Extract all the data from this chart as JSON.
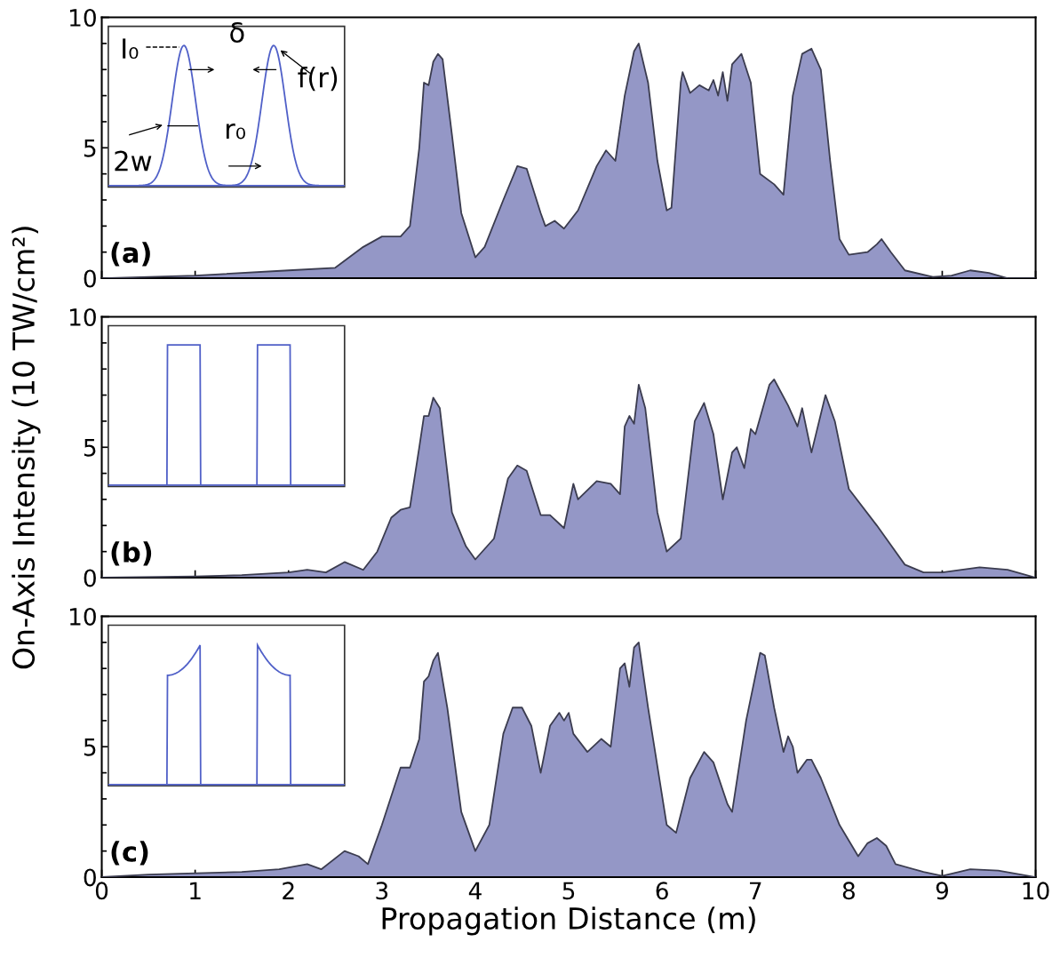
{
  "chart_data": [
    {
      "type": "area",
      "xlim": [
        0,
        10
      ],
      "ylim": [
        0,
        10
      ],
      "xticks": [
        {
          "value": 0,
          "label": null
        },
        {
          "value": 1,
          "label": null
        },
        {
          "value": 2,
          "label": null
        },
        {
          "value": 3,
          "label": null
        },
        {
          "value": 4,
          "label": null
        },
        {
          "value": 5,
          "label": null
        },
        {
          "value": 6,
          "label": null
        },
        {
          "value": 7,
          "label": null
        },
        {
          "value": 8,
          "label": null
        },
        {
          "value": 9,
          "label": null
        },
        {
          "value": 10,
          "label": null
        }
      ],
      "yticks": [
        0,
        {
          "value": 1,
          "label": null
        },
        {
          "value": 2,
          "label": null
        },
        {
          "value": 3,
          "label": null
        },
        {
          "value": 4,
          "label": null
        },
        5,
        {
          "value": 6,
          "label": null
        },
        {
          "value": 7,
          "label": null
        },
        {
          "value": 8,
          "label": null
        },
        {
          "value": 9,
          "label": null
        },
        10
      ],
      "tick_labels": "y",
      "grid": false,
      "annotations": [
        "(a)",
        "I₀",
        "δ",
        "f(r)",
        "2w",
        "r₀"
      ],
      "series": [
        {
          "color": "#9497c6",
          "x": [
            0,
            1.0,
            2.0,
            2.5,
            2.8,
            3.0,
            3.2,
            3.3,
            3.4,
            3.45,
            3.5,
            3.55,
            3.6,
            3.65,
            3.75,
            3.85,
            4.0,
            4.1,
            4.3,
            4.45,
            4.55,
            4.7,
            4.75,
            4.85,
            4.95,
            5.1,
            5.3,
            5.4,
            5.5,
            5.6,
            5.7,
            5.75,
            5.85,
            5.95,
            6.05,
            6.1,
            6.2,
            6.22,
            6.3,
            6.4,
            6.5,
            6.55,
            6.6,
            6.65,
            6.7,
            6.75,
            6.85,
            6.95,
            7.05,
            7.2,
            7.3,
            7.4,
            7.5,
            7.6,
            7.7,
            7.8,
            7.9,
            8.0,
            8.2,
            8.3,
            8.35,
            8.45,
            8.6,
            8.9,
            9.1,
            9.3,
            9.5,
            9.7,
            10
          ],
          "values": [
            0,
            0.1,
            0.3,
            0.4,
            1.2,
            1.6,
            1.6,
            2.0,
            5.0,
            7.5,
            7.4,
            8.3,
            8.6,
            8.4,
            5.5,
            2.5,
            0.8,
            1.2,
            3.0,
            4.3,
            4.2,
            2.5,
            2.0,
            2.2,
            1.9,
            2.6,
            4.3,
            4.9,
            4.5,
            7.0,
            8.7,
            9.0,
            7.5,
            4.5,
            2.6,
            2.7,
            7.5,
            7.9,
            7.1,
            7.4,
            7.2,
            7.6,
            7.0,
            7.9,
            6.8,
            8.2,
            8.6,
            7.5,
            4.0,
            3.6,
            3.2,
            7.0,
            8.6,
            8.8,
            8.0,
            4.5,
            1.5,
            0.9,
            1.0,
            1.3,
            1.5,
            1.0,
            0.3,
            0.05,
            0.1,
            0.3,
            0.2,
            0.0,
            0
          ]
        }
      ]
    },
    {
      "type": "area",
      "xlim": [
        0,
        10
      ],
      "ylim": [
        0,
        10
      ],
      "xticks": [
        {
          "value": 0,
          "label": null
        },
        {
          "value": 1,
          "label": null
        },
        {
          "value": 2,
          "label": null
        },
        {
          "value": 3,
          "label": null
        },
        {
          "value": 4,
          "label": null
        },
        {
          "value": 5,
          "label": null
        },
        {
          "value": 6,
          "label": null
        },
        {
          "value": 7,
          "label": null
        },
        {
          "value": 8,
          "label": null
        },
        {
          "value": 9,
          "label": null
        },
        {
          "value": 10,
          "label": null
        }
      ],
      "yticks": [
        0,
        {
          "value": 1,
          "label": null
        },
        {
          "value": 2,
          "label": null
        },
        {
          "value": 3,
          "label": null
        },
        {
          "value": 4,
          "label": null
        },
        5,
        {
          "value": 6,
          "label": null
        },
        {
          "value": 7,
          "label": null
        },
        {
          "value": 8,
          "label": null
        },
        {
          "value": 9,
          "label": null
        },
        10
      ],
      "tick_labels": "y",
      "grid": false,
      "ylabel": "On-Axis Intensity (10 TW/cm²)",
      "annotations": [
        "(b)"
      ],
      "series": [
        {
          "color": "#9497c6",
          "x": [
            0,
            1,
            1.5,
            2.0,
            2.2,
            2.4,
            2.6,
            2.8,
            2.95,
            3.1,
            3.2,
            3.3,
            3.4,
            3.45,
            3.5,
            3.55,
            3.62,
            3.75,
            3.9,
            4.0,
            4.2,
            4.35,
            4.45,
            4.55,
            4.7,
            4.8,
            4.95,
            5.05,
            5.1,
            5.3,
            5.45,
            5.55,
            5.6,
            5.65,
            5.7,
            5.75,
            5.82,
            5.95,
            6.05,
            6.2,
            6.35,
            6.45,
            6.55,
            6.65,
            6.75,
            6.8,
            6.88,
            6.95,
            7.0,
            7.15,
            7.2,
            7.35,
            7.45,
            7.5,
            7.6,
            7.75,
            7.85,
            8.0,
            8.3,
            8.6,
            8.8,
            9.0,
            9.4,
            9.7,
            10
          ],
          "values": [
            0,
            0.05,
            0.1,
            0.2,
            0.3,
            0.2,
            0.6,
            0.3,
            1.0,
            2.3,
            2.6,
            2.7,
            5.0,
            6.2,
            6.2,
            6.9,
            6.5,
            2.5,
            1.2,
            0.7,
            1.5,
            3.8,
            4.3,
            4.1,
            2.4,
            2.4,
            1.9,
            3.6,
            3.0,
            3.7,
            3.6,
            3.2,
            5.8,
            6.2,
            5.9,
            7.4,
            6.5,
            2.5,
            1.0,
            1.5,
            6.0,
            6.7,
            5.5,
            3.0,
            4.8,
            5.0,
            4.2,
            5.7,
            5.5,
            7.4,
            7.6,
            6.6,
            5.8,
            6.5,
            4.8,
            7.0,
            6.0,
            3.4,
            2.0,
            0.5,
            0.2,
            0.2,
            0.4,
            0.3,
            0
          ]
        }
      ]
    },
    {
      "type": "area",
      "xlim": [
        0,
        10
      ],
      "ylim": [
        0,
        10
      ],
      "xticks": [
        0,
        1,
        2,
        3,
        4,
        5,
        6,
        7,
        8,
        9,
        10
      ],
      "yticks": [
        0,
        {
          "value": 1,
          "label": null
        },
        {
          "value": 2,
          "label": null
        },
        {
          "value": 3,
          "label": null
        },
        {
          "value": 4,
          "label": null
        },
        5,
        {
          "value": 6,
          "label": null
        },
        {
          "value": 7,
          "label": null
        },
        {
          "value": 8,
          "label": null
        },
        {
          "value": 9,
          "label": null
        },
        10
      ],
      "grid": false,
      "xlabel": "Propagation Distance (m)",
      "annotations": [
        "(c)"
      ],
      "series": [
        {
          "color": "#9497c6",
          "x": [
            0,
            0.5,
            1.5,
            1.9,
            2.2,
            2.35,
            2.6,
            2.75,
            2.85,
            3.0,
            3.2,
            3.3,
            3.4,
            3.45,
            3.5,
            3.55,
            3.6,
            3.7,
            3.85,
            4.0,
            4.15,
            4.3,
            4.4,
            4.5,
            4.6,
            4.7,
            4.8,
            4.9,
            4.95,
            5.0,
            5.05,
            5.2,
            5.35,
            5.45,
            5.55,
            5.6,
            5.65,
            5.7,
            5.75,
            5.85,
            6.05,
            6.15,
            6.3,
            6.45,
            6.55,
            6.7,
            6.75,
            6.9,
            7.05,
            7.1,
            7.2,
            7.3,
            7.35,
            7.4,
            7.45,
            7.55,
            7.6,
            7.7,
            7.9,
            8.1,
            8.2,
            8.3,
            8.4,
            8.5,
            8.8,
            9.0,
            9.3,
            9.6,
            10
          ],
          "values": [
            0,
            0.1,
            0.2,
            0.3,
            0.5,
            0.3,
            1.0,
            0.8,
            0.5,
            2.0,
            4.2,
            4.2,
            5.3,
            7.5,
            7.7,
            8.3,
            8.6,
            6.5,
            2.5,
            1.0,
            2.0,
            5.5,
            6.5,
            6.5,
            5.8,
            4.0,
            5.8,
            6.3,
            6.0,
            6.3,
            5.5,
            4.8,
            5.3,
            5.0,
            8.0,
            8.2,
            7.3,
            8.8,
            9.0,
            6.5,
            2.0,
            1.7,
            3.8,
            4.8,
            4.4,
            2.8,
            2.5,
            6.0,
            8.6,
            8.5,
            6.5,
            4.8,
            5.4,
            5.0,
            4.0,
            4.5,
            4.5,
            3.8,
            2.0,
            0.8,
            1.3,
            1.5,
            1.2,
            0.5,
            0.2,
            0.05,
            0.3,
            0.25,
            0
          ]
        }
      ]
    }
  ]
}
